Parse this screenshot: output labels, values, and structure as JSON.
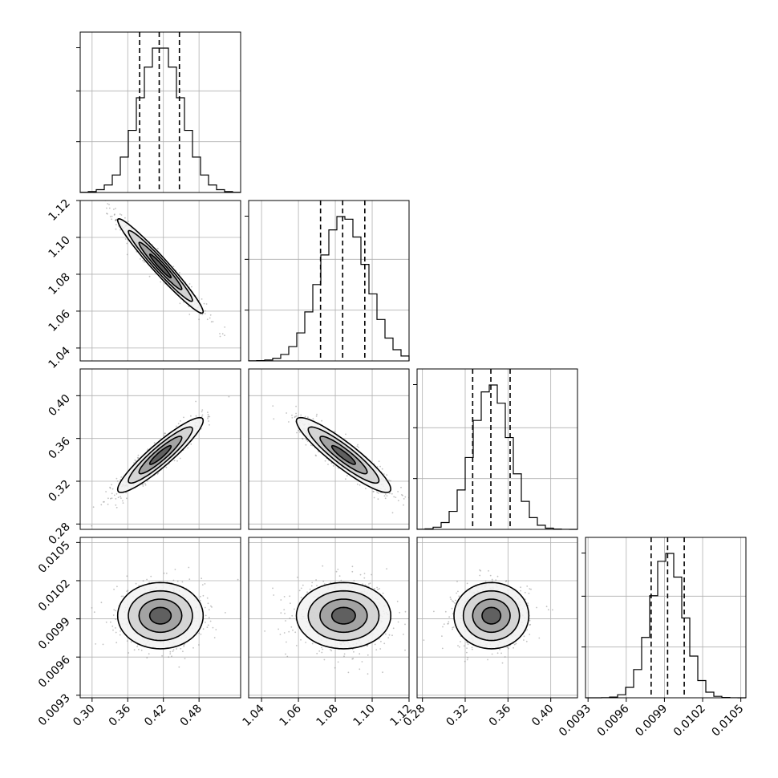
{
  "chart_data": {
    "type": "scatter",
    "subtype": "corner-plot",
    "title": "",
    "grid": true,
    "parameters": [
      {
        "index": 0,
        "mean": 0.415,
        "std": 0.036,
        "range": [
          0.28,
          0.55
        ],
        "quantiles": [
          0.38,
          0.413,
          0.447
        ],
        "ticks": [
          0.3,
          0.36,
          0.42,
          0.48
        ],
        "tick_labels": [
          "0.30",
          "0.36",
          "0.42",
          "0.48"
        ]
      },
      {
        "index": 1,
        "mean": 1.0845,
        "std": 0.0128,
        "range": [
          1.033,
          1.12
        ],
        "quantiles": [
          1.072,
          1.084,
          1.096
        ],
        "ticks": [
          1.04,
          1.06,
          1.08,
          1.1,
          1.12
        ],
        "tick_labels": [
          "1.04",
          "1.06",
          "1.08",
          "1.10",
          "1.12"
        ]
      },
      {
        "index": 2,
        "mean": 0.3445,
        "std": 0.0175,
        "range": [
          0.275,
          0.425
        ],
        "quantiles": [
          0.327,
          0.344,
          0.362
        ],
        "ticks": [
          0.28,
          0.32,
          0.36,
          0.4
        ],
        "tick_labels": [
          "0.28",
          "0.32",
          "0.36",
          "0.40"
        ]
      },
      {
        "index": 3,
        "mean": 0.009925,
        "std": 0.00013,
        "range": [
          0.00928,
          0.01054
        ],
        "quantiles": [
          0.0097955,
          0.009925,
          0.0100555
        ],
        "ticks": [
          0.0093,
          0.0096,
          0.0099,
          0.0102,
          0.0105
        ],
        "tick_labels": [
          "0.0093",
          "0.0096",
          "0.0099",
          "0.0102",
          "0.0105"
        ]
      }
    ],
    "correlations": [
      {
        "pair": [
          0,
          1
        ],
        "rho": -0.97
      },
      {
        "pair": [
          0,
          2
        ],
        "rho": 0.92
      },
      {
        "pair": [
          1,
          2
        ],
        "rho": -0.91
      },
      {
        "pair": [
          0,
          3
        ],
        "rho": 0.0
      },
      {
        "pair": [
          1,
          3
        ],
        "rho": 0.0
      },
      {
        "pair": [
          2,
          3
        ],
        "rho": 0.0
      }
    ],
    "contour_levels_sigma": [
      0.5,
      1.0,
      1.5,
      2.0
    ]
  }
}
